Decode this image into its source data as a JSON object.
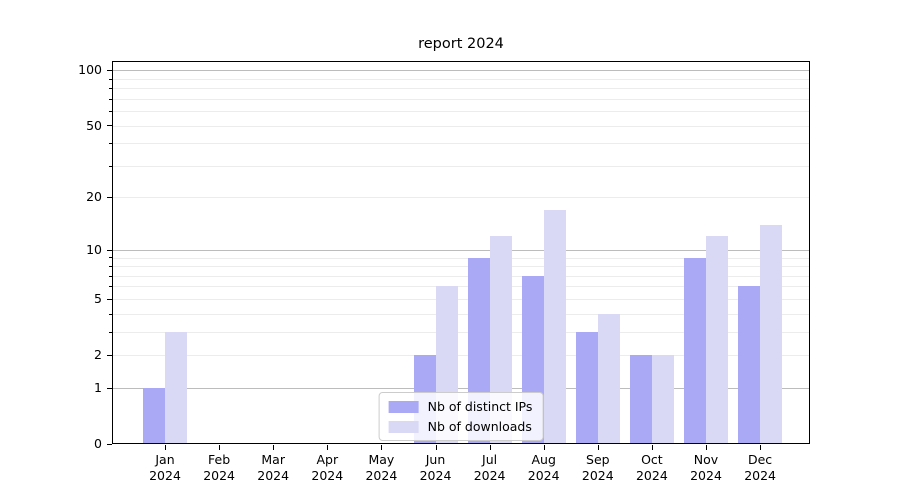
{
  "figure": {
    "background": "#ffffff"
  },
  "chart_data": {
    "type": "bar",
    "title": "report 2024",
    "categories": [
      "Jan",
      "Feb",
      "Mar",
      "Apr",
      "May",
      "Jun",
      "Jul",
      "Aug",
      "Sep",
      "Oct",
      "Nov",
      "Dec"
    ],
    "category_year": "2024",
    "series": [
      {
        "name": "Nb of distinct IPs",
        "color": "#a9a9f6",
        "values": [
          1,
          0,
          0,
          0,
          0,
          2,
          9,
          7,
          3,
          2,
          9,
          6
        ]
      },
      {
        "name": "Nb of downloads",
        "color": "#d9d9f6",
        "values": [
          3,
          0,
          0,
          0,
          0,
          6,
          12,
          17,
          4,
          2,
          12,
          14
        ]
      }
    ],
    "xlabel": "",
    "ylabel": "",
    "yscale": "log1p",
    "ylim": [
      0,
      112
    ],
    "yticks": [
      {
        "value": 100,
        "label": "100"
      },
      {
        "value": 50,
        "label": "50"
      },
      {
        "value": 20,
        "label": "20"
      },
      {
        "value": 10,
        "label": "10"
      },
      {
        "value": 5,
        "label": "5"
      },
      {
        "value": 2,
        "label": "2"
      },
      {
        "value": 1,
        "label": "1"
      },
      {
        "value": 0,
        "label": "0"
      }
    ],
    "yticks_minor": [
      3,
      4,
      6,
      7,
      8,
      9,
      30,
      40,
      60,
      70,
      80,
      90
    ],
    "grid": "horizontal",
    "grid_major_values": [
      1,
      10,
      100
    ],
    "legend_position": "lower center",
    "colors": {
      "bar_distinct_ips": "#a9a9f6",
      "bar_downloads": "#d9d9f6",
      "major_grid": "#bcbcbc",
      "minor_grid": "#ececec",
      "spine": "#000000",
      "text": "#000000",
      "legend_border": "#cccccc"
    }
  }
}
